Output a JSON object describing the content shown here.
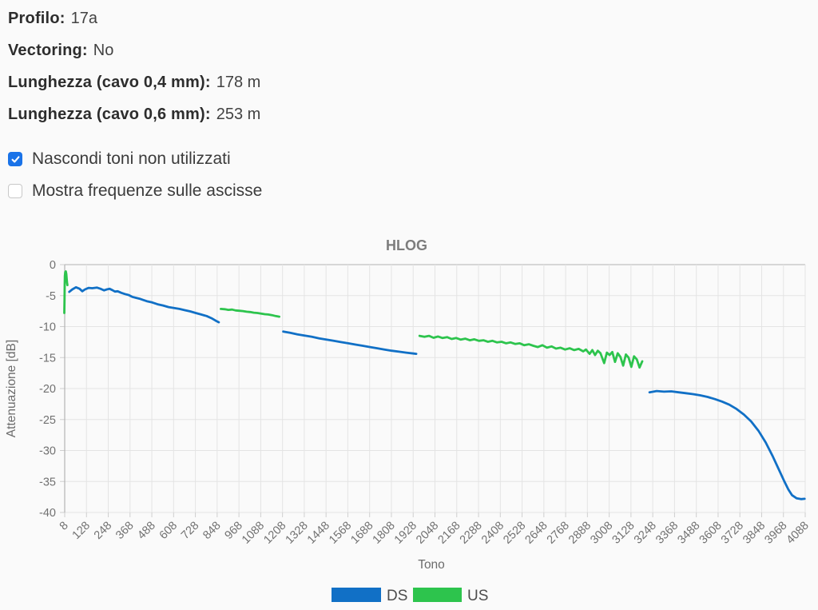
{
  "info": {
    "rows": [
      {
        "label": "Profilo:",
        "value": "17a"
      },
      {
        "label": "Vectoring:",
        "value": "No"
      },
      {
        "label": "Lunghezza (cavo 0,4 mm):",
        "value": "178 m"
      },
      {
        "label": "Lunghezza (cavo 0,6 mm):",
        "value": "253 m"
      }
    ]
  },
  "options": [
    {
      "label": "Nascondi toni non utilizzati",
      "checked": true
    },
    {
      "label": "Mostra frequenze sulle ascisse",
      "checked": false
    }
  ],
  "colors": {
    "checkbox_accent": "#1a73e8",
    "ds_blue": "#1170c6",
    "us_green": "#2dc44d",
    "grid": "#e4e4e4",
    "axis": "#b3b3b3"
  },
  "chart_data": {
    "type": "line",
    "title": "HLOG",
    "xlabel": "Tono",
    "ylabel": "Attenuazione [dB]",
    "xlim": [
      8,
      4088
    ],
    "ylim": [
      0,
      -40
    ],
    "grid": true,
    "legend_position": "bottom",
    "x_ticks": [
      8,
      128,
      248,
      368,
      488,
      608,
      728,
      848,
      968,
      1088,
      1208,
      1328,
      1448,
      1568,
      1688,
      1808,
      1928,
      2048,
      2168,
      2288,
      2408,
      2528,
      2648,
      2768,
      2888,
      3008,
      3128,
      3248,
      3368,
      3488,
      3608,
      3728,
      3848,
      3968,
      4088
    ],
    "y_ticks": [
      0,
      -5,
      -10,
      -15,
      -20,
      -25,
      -30,
      -35,
      -40
    ],
    "legend": [
      {
        "label": "DS",
        "color": "#1170c6"
      },
      {
        "label": "US",
        "color": "#2dc44d"
      }
    ],
    "series": [
      {
        "name": "DS",
        "color": "#1170c6",
        "segments": [
          [
            [
              33,
              -4.4
            ],
            [
              50,
              -4.0
            ],
            [
              70,
              -3.65
            ],
            [
              90,
              -3.9
            ],
            [
              105,
              -4.3
            ],
            [
              120,
              -4.0
            ],
            [
              140,
              -3.75
            ],
            [
              160,
              -3.8
            ],
            [
              185,
              -3.7
            ],
            [
              205,
              -3.9
            ],
            [
              225,
              -4.15
            ],
            [
              240,
              -4.0
            ],
            [
              255,
              -3.9
            ],
            [
              270,
              -4.1
            ],
            [
              285,
              -4.35
            ],
            [
              300,
              -4.3
            ],
            [
              320,
              -4.55
            ],
            [
              340,
              -4.75
            ],
            [
              360,
              -4.9
            ],
            [
              380,
              -5.2
            ],
            [
              400,
              -5.35
            ],
            [
              420,
              -5.5
            ],
            [
              440,
              -5.7
            ],
            [
              460,
              -5.9
            ],
            [
              490,
              -6.1
            ],
            [
              520,
              -6.4
            ],
            [
              550,
              -6.6
            ],
            [
              580,
              -6.85
            ],
            [
              610,
              -7.0
            ],
            [
              640,
              -7.15
            ],
            [
              670,
              -7.35
            ],
            [
              700,
              -7.55
            ],
            [
              730,
              -7.8
            ],
            [
              760,
              -8.05
            ],
            [
              790,
              -8.3
            ],
            [
              820,
              -8.7
            ],
            [
              840,
              -9.05
            ],
            [
              857,
              -9.3
            ]
          ],
          [
            [
              1212,
              -10.8
            ],
            [
              1250,
              -11.0
            ],
            [
              1290,
              -11.25
            ],
            [
              1330,
              -11.45
            ],
            [
              1370,
              -11.65
            ],
            [
              1410,
              -11.9
            ],
            [
              1450,
              -12.1
            ],
            [
              1490,
              -12.3
            ],
            [
              1530,
              -12.5
            ],
            [
              1570,
              -12.7
            ],
            [
              1610,
              -12.9
            ],
            [
              1650,
              -13.1
            ],
            [
              1690,
              -13.3
            ],
            [
              1730,
              -13.5
            ],
            [
              1770,
              -13.7
            ],
            [
              1810,
              -13.9
            ],
            [
              1850,
              -14.05
            ],
            [
              1890,
              -14.2
            ],
            [
              1930,
              -14.35
            ],
            [
              1945,
              -14.4
            ]
          ],
          [
            [
              3230,
              -20.6
            ],
            [
              3270,
              -20.4
            ],
            [
              3310,
              -20.5
            ],
            [
              3350,
              -20.45
            ],
            [
              3390,
              -20.6
            ],
            [
              3430,
              -20.75
            ],
            [
              3470,
              -20.9
            ],
            [
              3510,
              -21.1
            ],
            [
              3550,
              -21.35
            ],
            [
              3590,
              -21.7
            ],
            [
              3630,
              -22.1
            ],
            [
              3670,
              -22.6
            ],
            [
              3710,
              -23.3
            ],
            [
              3750,
              -24.2
            ],
            [
              3790,
              -25.3
            ],
            [
              3830,
              -26.8
            ],
            [
              3870,
              -28.7
            ],
            [
              3910,
              -31.0
            ],
            [
              3940,
              -32.9
            ],
            [
              3970,
              -34.8
            ],
            [
              3995,
              -36.3
            ],
            [
              4015,
              -37.2
            ],
            [
              4040,
              -37.7
            ],
            [
              4065,
              -37.85
            ],
            [
              4085,
              -37.8
            ]
          ]
        ]
      },
      {
        "name": "US",
        "color": "#2dc44d",
        "segments": [
          [
            [
              6,
              -7.8
            ],
            [
              7,
              -5.5
            ],
            [
              8,
              -3.2
            ],
            [
              9,
              -1.8
            ],
            [
              11,
              -1.2
            ],
            [
              14,
              -1.1
            ],
            [
              17,
              -1.5
            ],
            [
              19,
              -2.3
            ],
            [
              21,
              -3.0
            ],
            [
              23,
              -3.3
            ]
          ],
          [
            [
              868,
              -7.15
            ],
            [
              890,
              -7.2
            ],
            [
              910,
              -7.3
            ],
            [
              930,
              -7.25
            ],
            [
              950,
              -7.4
            ],
            [
              970,
              -7.45
            ],
            [
              990,
              -7.5
            ],
            [
              1010,
              -7.6
            ],
            [
              1030,
              -7.65
            ],
            [
              1050,
              -7.75
            ],
            [
              1070,
              -7.8
            ],
            [
              1090,
              -7.9
            ],
            [
              1110,
              -8.0
            ],
            [
              1130,
              -8.05
            ],
            [
              1150,
              -8.15
            ],
            [
              1170,
              -8.3
            ],
            [
              1190,
              -8.4
            ]
          ],
          [
            [
              1963,
              -11.5
            ],
            [
              1990,
              -11.65
            ],
            [
              2015,
              -11.5
            ],
            [
              2040,
              -11.8
            ],
            [
              2065,
              -11.6
            ],
            [
              2090,
              -11.85
            ],
            [
              2115,
              -11.7
            ],
            [
              2140,
              -12.0
            ],
            [
              2165,
              -11.85
            ],
            [
              2190,
              -12.1
            ],
            [
              2215,
              -11.95
            ],
            [
              2240,
              -12.2
            ],
            [
              2265,
              -12.05
            ],
            [
              2290,
              -12.3
            ],
            [
              2315,
              -12.2
            ],
            [
              2340,
              -12.45
            ],
            [
              2365,
              -12.3
            ],
            [
              2390,
              -12.55
            ],
            [
              2415,
              -12.45
            ],
            [
              2440,
              -12.7
            ],
            [
              2465,
              -12.55
            ],
            [
              2490,
              -12.8
            ],
            [
              2515,
              -12.7
            ],
            [
              2540,
              -13.0
            ],
            [
              2565,
              -12.85
            ],
            [
              2590,
              -13.1
            ],
            [
              2615,
              -13.3
            ],
            [
              2640,
              -13.0
            ],
            [
              2665,
              -13.4
            ],
            [
              2690,
              -13.2
            ],
            [
              2715,
              -13.55
            ],
            [
              2740,
              -13.4
            ],
            [
              2765,
              -13.7
            ],
            [
              2790,
              -13.5
            ],
            [
              2815,
              -13.8
            ],
            [
              2840,
              -13.6
            ],
            [
              2865,
              -14.0
            ],
            [
              2880,
              -13.7
            ],
            [
              2900,
              -14.4
            ],
            [
              2915,
              -13.8
            ],
            [
              2930,
              -14.6
            ],
            [
              2945,
              -13.9
            ],
            [
              2960,
              -14.3
            ],
            [
              2980,
              -15.9
            ],
            [
              2995,
              -14.2
            ],
            [
              3010,
              -14.6
            ],
            [
              3025,
              -14.1
            ],
            [
              3040,
              -15.7
            ],
            [
              3055,
              -14.3
            ],
            [
              3070,
              -14.9
            ],
            [
              3085,
              -16.3
            ],
            [
              3100,
              -14.5
            ],
            [
              3115,
              -15.0
            ],
            [
              3130,
              -16.5
            ],
            [
              3145,
              -14.8
            ],
            [
              3160,
              -15.3
            ],
            [
              3175,
              -16.6
            ],
            [
              3190,
              -15.6
            ]
          ]
        ]
      }
    ]
  }
}
